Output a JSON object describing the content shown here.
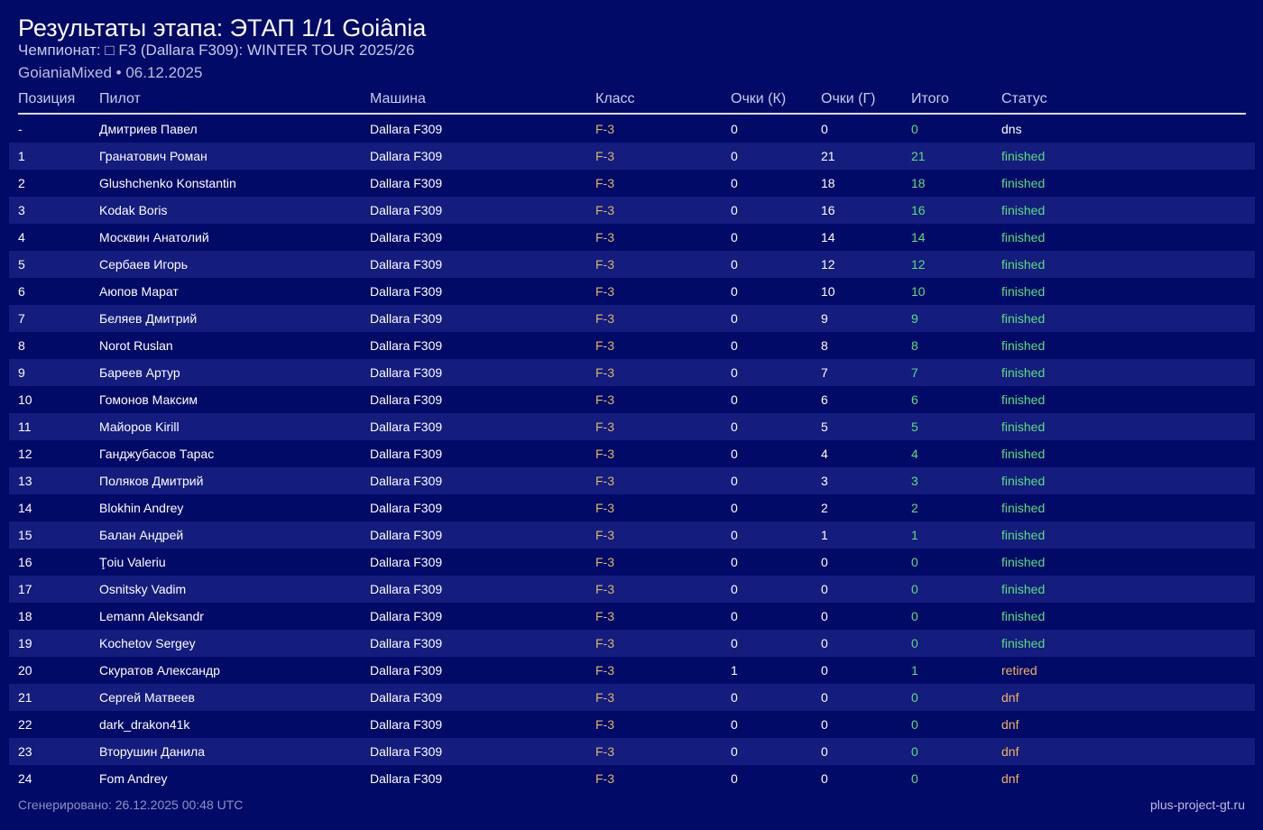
{
  "header": {
    "title": "Результаты этапа: ЭТАП 1/1 Goiânia",
    "subtitle": "Чемпионат: □ F3 (Dallara F309): WINTER TOUR 2025/26",
    "meta": "GoianiaMixed • 06.12.2025"
  },
  "columns": {
    "position": "Позиция",
    "pilot": "Пилот",
    "car": "Машина",
    "class": "Класс",
    "points_k": "Очки (К)",
    "points_g": "Очки (Г)",
    "total": "Итого",
    "status": "Статус"
  },
  "colors": {
    "background": "#010a66",
    "row_alt": "#141c7e",
    "class_text": "#d7b76a",
    "total_text": "#55e07a",
    "status_finished": "#55e07a",
    "status_dnf": "#f0b35f"
  },
  "rows": [
    {
      "position": "-",
      "pilot": "Дмитриев Павел",
      "car": "Dallara F309",
      "class": "F-3",
      "points_k": "0",
      "points_g": "0",
      "total": "0",
      "status": "dns"
    },
    {
      "position": "1",
      "pilot": "Гранатович Роман",
      "car": "Dallara F309",
      "class": "F-3",
      "points_k": "0",
      "points_g": "21",
      "total": "21",
      "status": "finished"
    },
    {
      "position": "2",
      "pilot": "Glushchenko Konstantin",
      "car": "Dallara F309",
      "class": "F-3",
      "points_k": "0",
      "points_g": "18",
      "total": "18",
      "status": "finished"
    },
    {
      "position": "3",
      "pilot": "Kodak Boris",
      "car": "Dallara F309",
      "class": "F-3",
      "points_k": "0",
      "points_g": "16",
      "total": "16",
      "status": "finished"
    },
    {
      "position": "4",
      "pilot": "Москвин Анатолий",
      "car": "Dallara F309",
      "class": "F-3",
      "points_k": "0",
      "points_g": "14",
      "total": "14",
      "status": "finished"
    },
    {
      "position": "5",
      "pilot": "Сербаев Игорь",
      "car": "Dallara F309",
      "class": "F-3",
      "points_k": "0",
      "points_g": "12",
      "total": "12",
      "status": "finished"
    },
    {
      "position": "6",
      "pilot": "Аюпов Марат",
      "car": "Dallara F309",
      "class": "F-3",
      "points_k": "0",
      "points_g": "10",
      "total": "10",
      "status": "finished"
    },
    {
      "position": "7",
      "pilot": "Беляев Дмитрий",
      "car": "Dallara F309",
      "class": "F-3",
      "points_k": "0",
      "points_g": "9",
      "total": "9",
      "status": "finished"
    },
    {
      "position": "8",
      "pilot": "Norot Ruslan",
      "car": "Dallara F309",
      "class": "F-3",
      "points_k": "0",
      "points_g": "8",
      "total": "8",
      "status": "finished"
    },
    {
      "position": "9",
      "pilot": "Бареев Артур",
      "car": "Dallara F309",
      "class": "F-3",
      "points_k": "0",
      "points_g": "7",
      "total": "7",
      "status": "finished"
    },
    {
      "position": "10",
      "pilot": "Гомонов Максим",
      "car": "Dallara F309",
      "class": "F-3",
      "points_k": "0",
      "points_g": "6",
      "total": "6",
      "status": "finished"
    },
    {
      "position": "11",
      "pilot": "Майоров Kirill",
      "car": "Dallara F309",
      "class": "F-3",
      "points_k": "0",
      "points_g": "5",
      "total": "5",
      "status": "finished"
    },
    {
      "position": "12",
      "pilot": "Ганджубасов Тарас",
      "car": "Dallara F309",
      "class": "F-3",
      "points_k": "0",
      "points_g": "4",
      "total": "4",
      "status": "finished"
    },
    {
      "position": "13",
      "pilot": "Поляков Дмитрий",
      "car": "Dallara F309",
      "class": "F-3",
      "points_k": "0",
      "points_g": "3",
      "total": "3",
      "status": "finished"
    },
    {
      "position": "14",
      "pilot": "Blokhin Andrey",
      "car": "Dallara F309",
      "class": "F-3",
      "points_k": "0",
      "points_g": "2",
      "total": "2",
      "status": "finished"
    },
    {
      "position": "15",
      "pilot": "Балан Андрей",
      "car": "Dallara F309",
      "class": "F-3",
      "points_k": "0",
      "points_g": "1",
      "total": "1",
      "status": "finished"
    },
    {
      "position": "16",
      "pilot": "Ţoiu Valeriu",
      "car": "Dallara F309",
      "class": "F-3",
      "points_k": "0",
      "points_g": "0",
      "total": "0",
      "status": "finished"
    },
    {
      "position": "17",
      "pilot": "Osnitsky Vadim",
      "car": "Dallara F309",
      "class": "F-3",
      "points_k": "0",
      "points_g": "0",
      "total": "0",
      "status": "finished"
    },
    {
      "position": "18",
      "pilot": "Lemann Aleksandr",
      "car": "Dallara F309",
      "class": "F-3",
      "points_k": "0",
      "points_g": "0",
      "total": "0",
      "status": "finished"
    },
    {
      "position": "19",
      "pilot": "Kochetov Sergey",
      "car": "Dallara F309",
      "class": "F-3",
      "points_k": "0",
      "points_g": "0",
      "total": "0",
      "status": "finished"
    },
    {
      "position": "20",
      "pilot": "Скуратов Александр",
      "car": "Dallara F309",
      "class": "F-3",
      "points_k": "1",
      "points_g": "0",
      "total": "1",
      "status": "retired"
    },
    {
      "position": "21",
      "pilot": "Сергей Матвеев",
      "car": "Dallara F309",
      "class": "F-3",
      "points_k": "0",
      "points_g": "0",
      "total": "0",
      "status": "dnf"
    },
    {
      "position": "22",
      "pilot": "dark_drakon41k",
      "car": "Dallara F309",
      "class": "F-3",
      "points_k": "0",
      "points_g": "0",
      "total": "0",
      "status": "dnf"
    },
    {
      "position": "23",
      "pilot": "Вторушин Данила",
      "car": "Dallara F309",
      "class": "F-3",
      "points_k": "0",
      "points_g": "0",
      "total": "0",
      "status": "dnf"
    },
    {
      "position": "24",
      "pilot": "Fom Andrey",
      "car": "Dallara F309",
      "class": "F-3",
      "points_k": "0",
      "points_g": "0",
      "total": "0",
      "status": "dnf"
    }
  ],
  "footer": {
    "generated": "Сгенерировано: 26.12.2025 00:48 UTC",
    "site": "plus-project-gt.ru"
  }
}
